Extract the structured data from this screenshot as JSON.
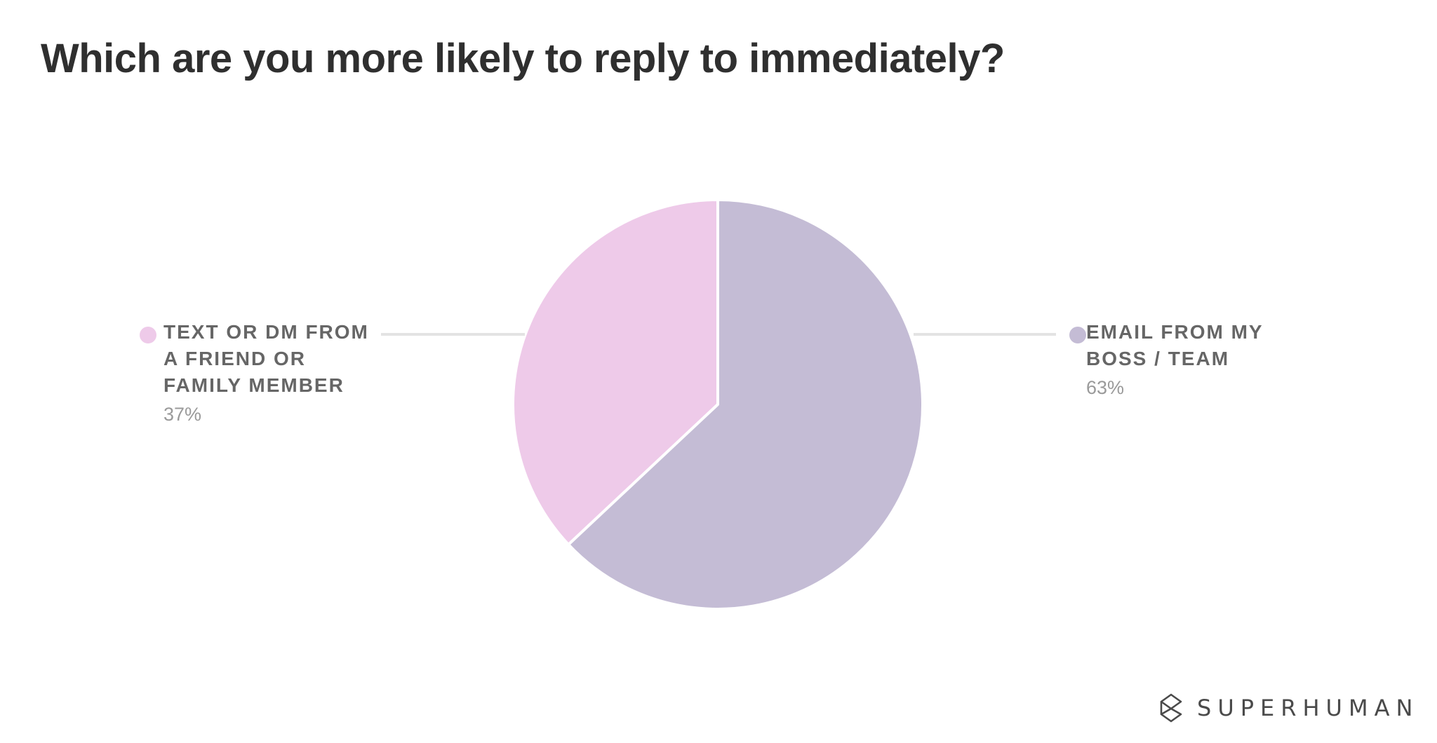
{
  "chart_data": {
    "type": "pie",
    "title": "Which are you more likely to reply to immediately?",
    "slices": [
      {
        "label": "TEXT OR DM FROM A FRIEND OR FAMILY MEMBER",
        "value": 37,
        "value_label": "37%",
        "color": "#eecae9",
        "legend_position": "left"
      },
      {
        "label": "EMAIL FROM MY BOSS / TEAM",
        "value": 63,
        "value_label": "63%",
        "color": "#c4bcd5",
        "legend_position": "right"
      }
    ]
  },
  "brand": {
    "name": "SUPERHUMAN",
    "icon": "superhuman-logo-icon"
  },
  "colors": {
    "title": "#2f2f2f",
    "legend_text": "#666666",
    "value_text": "#9a9a9a",
    "leader_line": "#e3e3e3",
    "slice_border": "#ffffff"
  }
}
